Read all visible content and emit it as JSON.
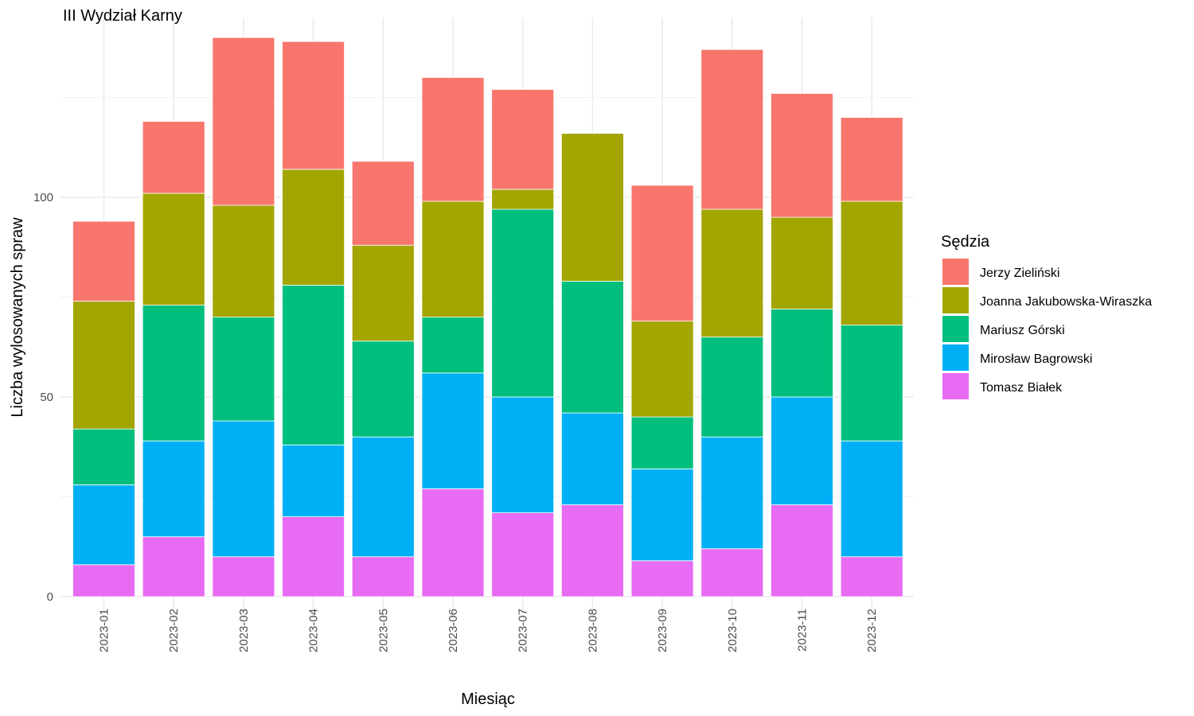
{
  "chart_data": {
    "type": "bar",
    "stacked": true,
    "title": "III Wydział Karny",
    "xlabel": "Miesiąc",
    "ylabel": "Liczba wylosowanych spraw",
    "ylim": [
      0,
      145
    ],
    "yticks": [
      0,
      50,
      100
    ],
    "grid": true,
    "legend_title": "Sędzia",
    "legend_position": "right",
    "categories": [
      "2023-01",
      "2023-02",
      "2023-03",
      "2023-04",
      "2023-05",
      "2023-06",
      "2023-07",
      "2023-08",
      "2023-09",
      "2023-10",
      "2023-11",
      "2023-12"
    ],
    "series": [
      {
        "name": "Tomasz Białek",
        "color": "#E76BF3",
        "values": [
          8,
          15,
          10,
          20,
          10,
          27,
          21,
          23,
          9,
          12,
          23,
          10
        ]
      },
      {
        "name": "Mirosław Bagrowski",
        "color": "#00B0F6",
        "values": [
          20,
          24,
          34,
          18,
          30,
          29,
          29,
          23,
          23,
          28,
          27,
          29
        ]
      },
      {
        "name": "Mariusz Górski",
        "color": "#00BF7D",
        "values": [
          14,
          34,
          26,
          40,
          24,
          14,
          47,
          33,
          13,
          25,
          22,
          29
        ]
      },
      {
        "name": "Joanna Jakubowska-Wiraszka",
        "color": "#A3A500",
        "values": [
          32,
          28,
          28,
          29,
          24,
          29,
          5,
          37,
          24,
          32,
          23,
          31
        ]
      },
      {
        "name": "Jerzy Zieliński",
        "color": "#F8766D",
        "values": [
          20,
          18,
          42,
          32,
          21,
          31,
          25,
          0,
          34,
          40,
          31,
          21
        ]
      }
    ],
    "legend_order": [
      "Jerzy Zieliński",
      "Joanna Jakubowska-Wiraszka",
      "Mariusz Górski",
      "Mirosław Bagrowski",
      "Tomasz Białek"
    ]
  }
}
